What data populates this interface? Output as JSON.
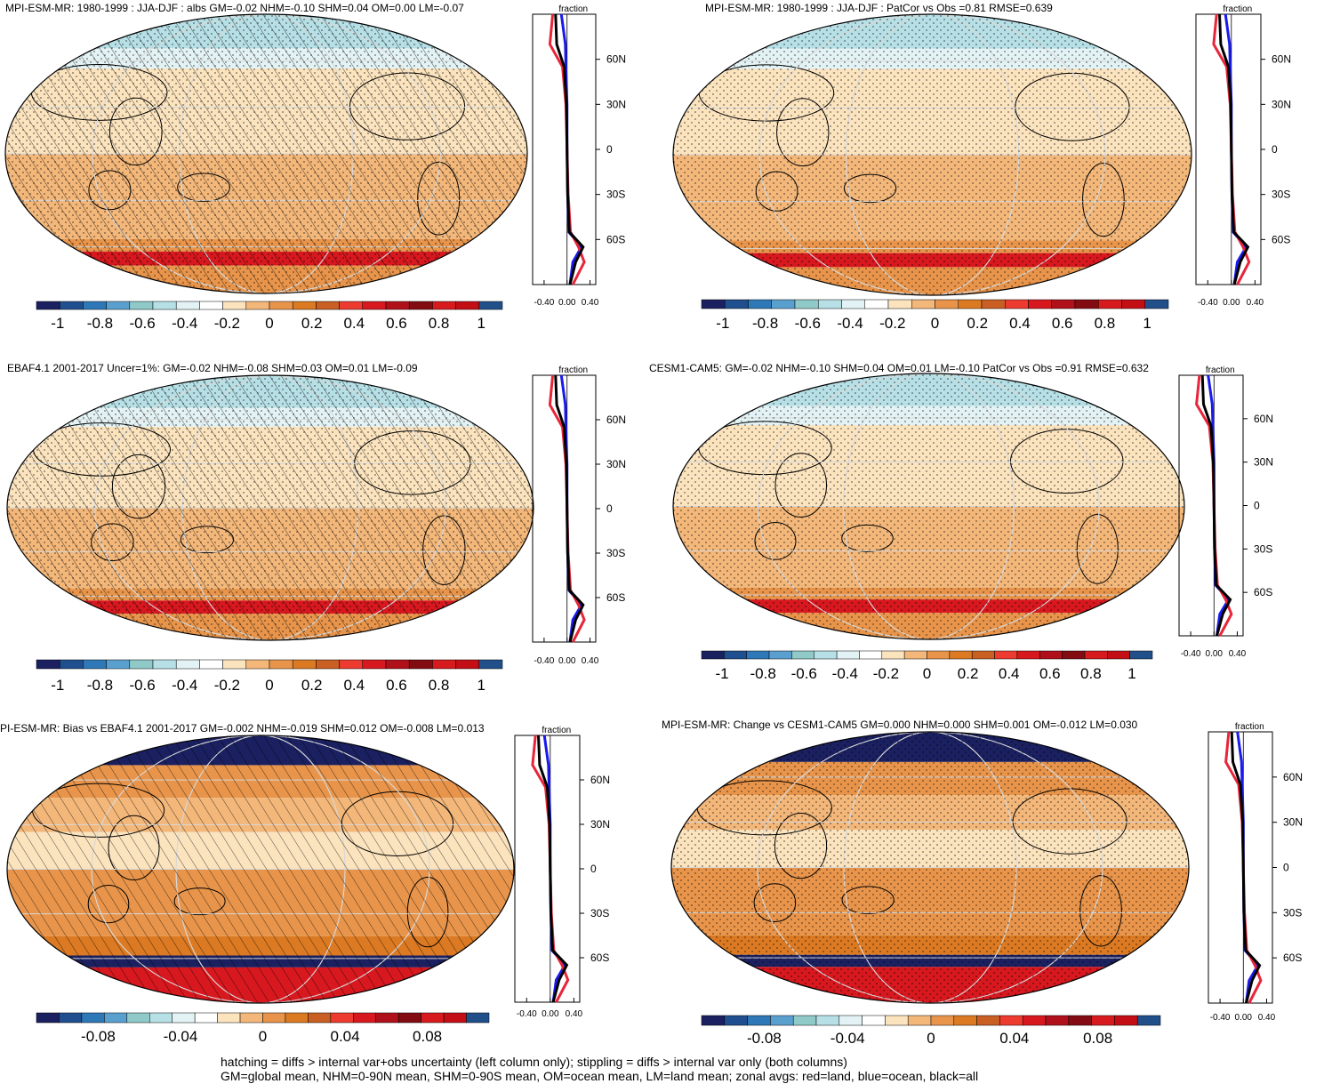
{
  "chart_data": [
    {
      "type": "map",
      "id": "p1",
      "title": "MPI-ESM-MR: 1980-1999 : JJA-DJF : albs GM=-0.02 NHM=-0.10 SHM=0.04 OM=0.00 LM=-0.07",
      "hatching": true,
      "stippling": true,
      "colorbar_ticks": [
        "-1",
        "-0.8",
        "-0.6",
        "-0.4",
        "-0.2",
        "0",
        "0.2",
        "0.4",
        "0.6",
        "0.8",
        "1"
      ],
      "profile": {
        "xlabel": "fraction",
        "xticks": [
          "-0.40",
          "0.00",
          "0.40"
        ],
        "yticks": [
          "60N",
          "30N",
          "0",
          "30S",
          "60S"
        ]
      }
    },
    {
      "type": "map",
      "id": "p2",
      "title": "MPI-ESM-MR: 1980-1999 : JJA-DJF : PatCor vs Obs =0.81 RMSE=0.639",
      "hatching": false,
      "stippling": true,
      "colorbar_ticks": [
        "-1",
        "-0.8",
        "-0.6",
        "-0.4",
        "-0.2",
        "0",
        "0.2",
        "0.4",
        "0.6",
        "0.8",
        "1"
      ],
      "profile": {
        "xlabel": "fraction",
        "xticks": [
          "-0.40",
          "0.00",
          "0.40"
        ],
        "yticks": [
          "60N",
          "30N",
          "0",
          "30S",
          "60S"
        ]
      }
    },
    {
      "type": "map",
      "id": "p3",
      "title": "EBAF4.1 2001-2017 Uncer=1%: GM=-0.02 NHM=-0.08 SHM=0.03 OM=0.01 LM=-0.09",
      "hatching": true,
      "stippling": true,
      "colorbar_ticks": [
        "-1",
        "-0.8",
        "-0.6",
        "-0.4",
        "-0.2",
        "0",
        "0.2",
        "0.4",
        "0.6",
        "0.8",
        "1"
      ],
      "profile": {
        "xlabel": "fraction",
        "xticks": [
          "-0.40",
          "0.00",
          "0.40"
        ],
        "yticks": [
          "60N",
          "30N",
          "0",
          "30S",
          "60S"
        ]
      }
    },
    {
      "type": "map",
      "id": "p4",
      "title": "CESM1-CAM5: GM=-0.02 NHM=-0.10 SHM=0.04 OM=0.01 LM=-0.10 PatCor vs Obs =0.91 RMSE=0.632",
      "hatching": false,
      "stippling": true,
      "colorbar_ticks": [
        "-1",
        "-0.8",
        "-0.6",
        "-0.4",
        "-0.2",
        "0",
        "0.2",
        "0.4",
        "0.6",
        "0.8",
        "1"
      ],
      "profile": {
        "xlabel": "fraction",
        "xticks": [
          "-0.40",
          "0.00",
          "0.40"
        ],
        "yticks": [
          "60N",
          "30N",
          "0",
          "30S",
          "60S"
        ]
      }
    },
    {
      "type": "map",
      "id": "p5",
      "title": "PI-ESM-MR: Bias vs EBAF4.1 2001-2017 GM=-0.002 NHM=-0.019 SHM=0.012 OM=-0.008 LM=0.013",
      "hatching": true,
      "stippling": false,
      "colorbar_ticks": [
        "-0.08",
        "-0.04",
        "0",
        "0.04",
        "0.08"
      ],
      "profile": {
        "xlabel": "fraction",
        "xticks": [
          "-0.40",
          "0.00",
          "0.40"
        ],
        "yticks": [
          "60N",
          "30N",
          "0",
          "30S",
          "60S"
        ]
      }
    },
    {
      "type": "map",
      "id": "p6",
      "title": "MPI-ESM-MR: Change vs CESM1-CAM5 GM=0.000 NHM=0.000 SHM=0.001 OM=-0.012 LM=0.030",
      "hatching": false,
      "stippling": true,
      "colorbar_ticks": [
        "-0.08",
        "-0.04",
        "0",
        "0.04",
        "0.08"
      ],
      "profile": {
        "xlabel": "fraction",
        "xticks": [
          "-0.40",
          "0.00",
          "0.40"
        ],
        "yticks": [
          "60N",
          "30N",
          "0",
          "30S",
          "60S"
        ]
      }
    }
  ],
  "footer": {
    "line1": "hatching = diffs > internal var+obs uncertainty (left column only); stippling = diffs > internal var only (both columns)",
    "line2": "GM=global mean, NHM=0-90N mean, SHM=0-90S mean, OM=ocean mean, LM=land mean; zonal avgs: red=land, blue=ocean, black=all"
  },
  "colors": {
    "palette": [
      "#1a2060",
      "#1f4f8f",
      "#2e78b8",
      "#5aa0cf",
      "#8fc9c8",
      "#b6e0e6",
      "#e3f3f5",
      "#ffffff",
      "#fbe3be",
      "#f3b77a",
      "#e8954b",
      "#db7a22",
      "#c95f22",
      "#ee3b2f",
      "#d8181f",
      "#b0101a",
      "#820c12",
      "#d71a1d",
      "#c30e15",
      "#204f8a"
    ],
    "land": "#e8253a",
    "ocean": "#1a1aee",
    "all": "#000000"
  }
}
